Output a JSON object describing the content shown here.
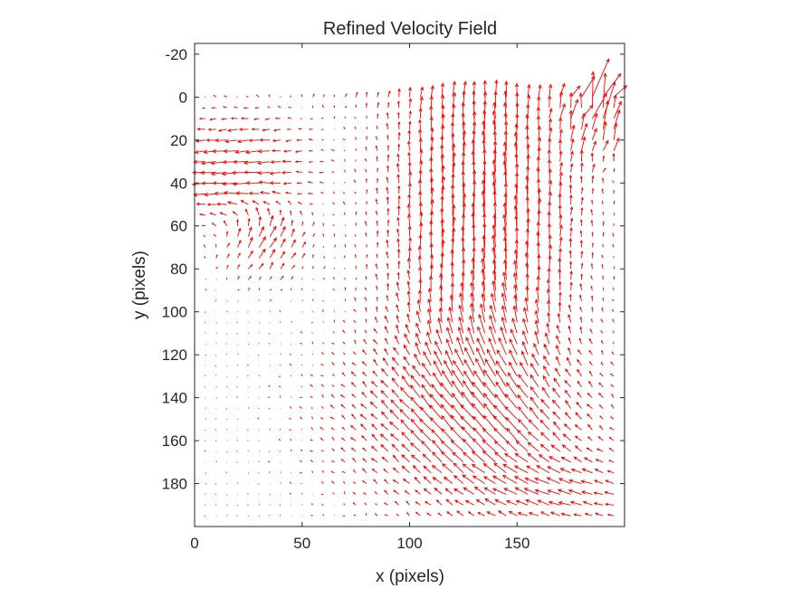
{
  "chart_data": {
    "type": "quiver",
    "title": "Refined Velocity Field",
    "xlabel": "x (pixels)",
    "ylabel": "y (pixels)",
    "xlim": [
      0,
      200
    ],
    "ylim": [
      -25,
      200
    ],
    "y_direction": "reverse",
    "x_ticks": [
      0,
      50,
      100,
      150
    ],
    "y_ticks": [
      -20,
      0,
      20,
      40,
      60,
      80,
      100,
      120,
      140,
      160,
      180
    ],
    "grid": false,
    "legend": "none",
    "arrow_color": "#ff0000",
    "grid_spacing": 5,
    "x_range": [
      5,
      195
    ],
    "y_range": [
      0,
      195
    ],
    "flow_features": [
      {
        "description": "strong upward band",
        "x_range": [
          100,
          165
        ],
        "y_range": [
          0,
          120
        ],
        "u": 0,
        "v": -8
      },
      {
        "description": "leftward flow region",
        "x_range": [
          0,
          40
        ],
        "y_range": [
          15,
          60
        ],
        "u": -6,
        "v": 0
      },
      {
        "description": "diagonal up-left flow",
        "x_range": [
          100,
          170
        ],
        "y_range": [
          120,
          180
        ],
        "u": -5,
        "v": -4
      },
      {
        "description": "turbulent corner",
        "x_range": [
          175,
          200
        ],
        "y_range": [
          -25,
          30
        ],
        "u": 4,
        "v": -10
      }
    ]
  }
}
